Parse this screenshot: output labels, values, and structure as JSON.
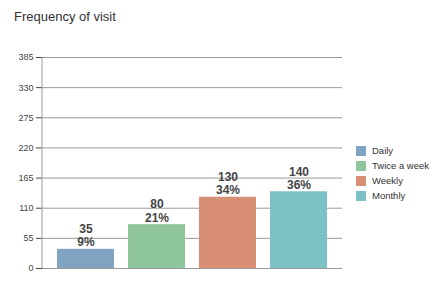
{
  "chart_data": {
    "type": "bar",
    "title": "Frequency of visit",
    "categories": [
      "Daily",
      "Twice a week",
      "Weekly",
      "Monthly"
    ],
    "values": [
      35,
      80,
      130,
      140
    ],
    "percent_labels": [
      "9%",
      "21%",
      "34%",
      "36%"
    ],
    "colors": [
      "#7fa3c1",
      "#8ec59b",
      "#d98f73",
      "#7cc1c4"
    ],
    "ylim": [
      0,
      385
    ],
    "yticks": [
      0,
      55,
      110,
      165,
      220,
      275,
      330,
      385
    ],
    "grid": true,
    "legend": "right",
    "data_labels": true,
    "tick_labels": "y"
  }
}
